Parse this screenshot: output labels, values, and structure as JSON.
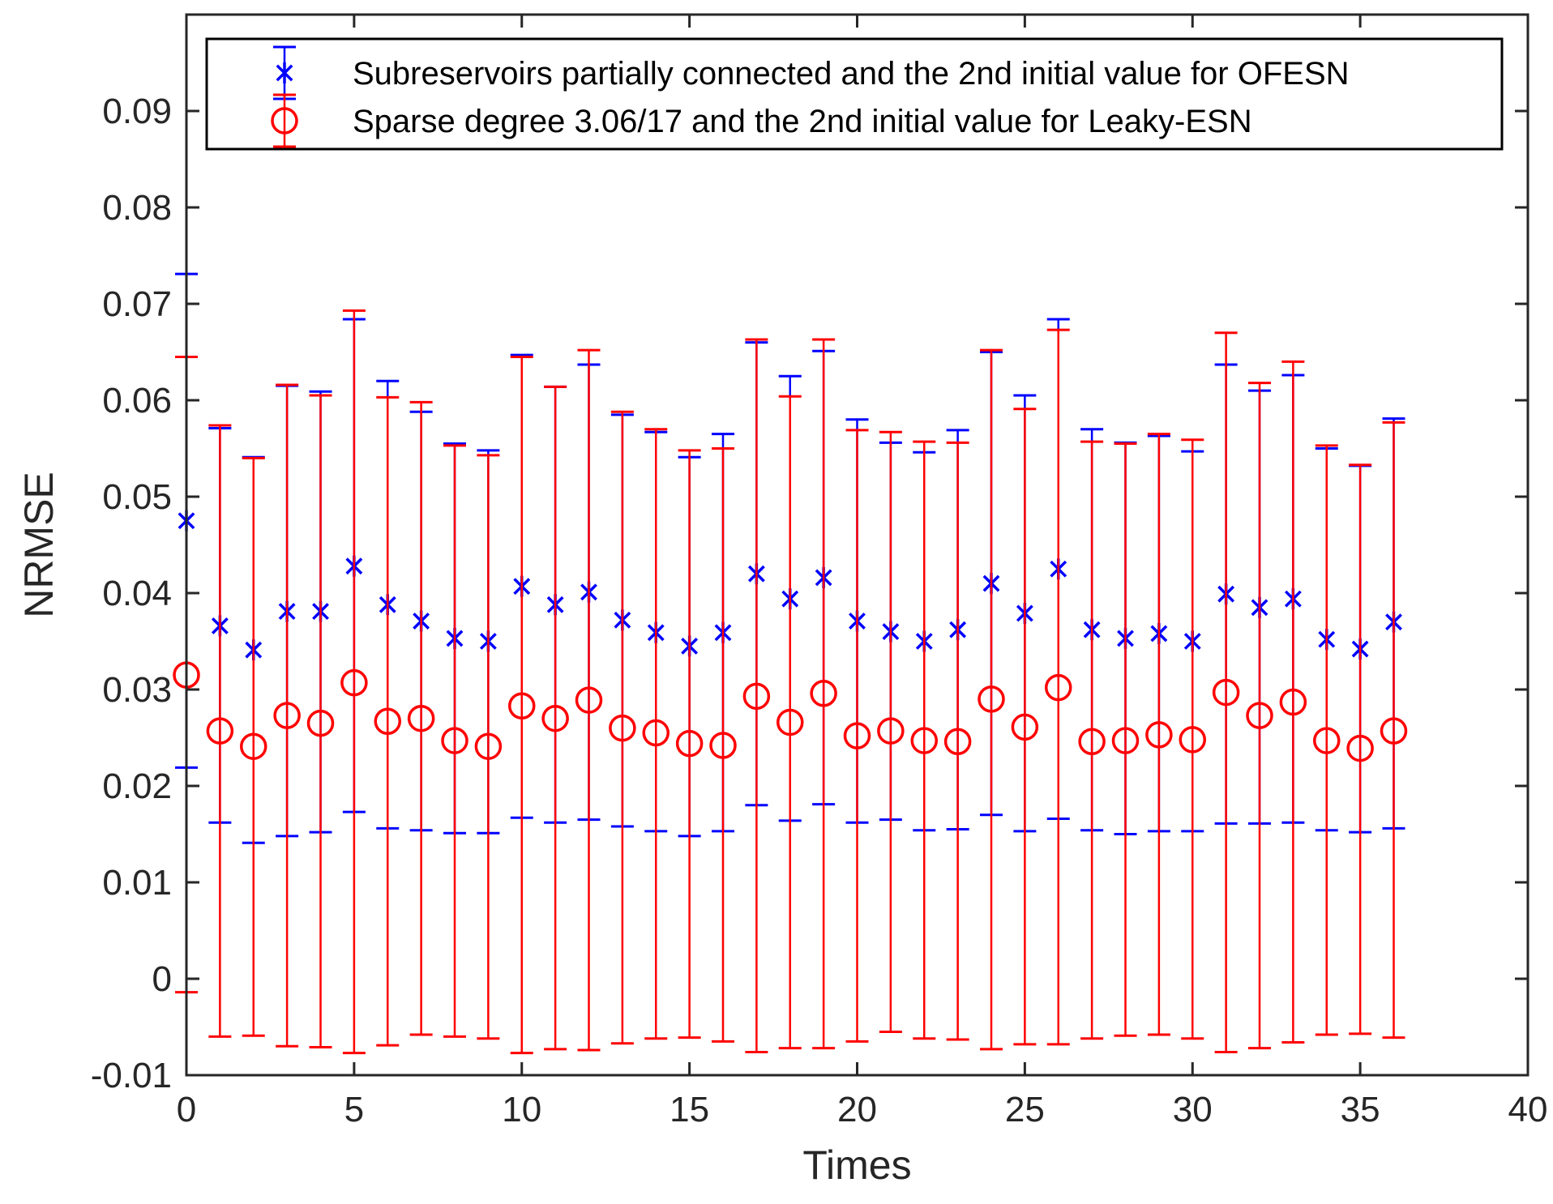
{
  "chart_data": {
    "type": "errorbar",
    "title": "",
    "xlabel": "Times",
    "ylabel": "NRMSE",
    "xlim": [
      0,
      40
    ],
    "ylim": [
      -0.01,
      0.1
    ],
    "xticks": [
      0,
      5,
      10,
      15,
      20,
      25,
      30,
      35,
      40
    ],
    "xtick_labels": [
      "0",
      "5",
      "10",
      "15",
      "20",
      "25",
      "30",
      "35",
      "40"
    ],
    "yticks": [
      -0.01,
      0,
      0.01,
      0.02,
      0.03,
      0.04,
      0.05,
      0.06,
      0.07,
      0.08,
      0.09
    ],
    "ytick_labels": [
      "-0.01",
      "0",
      "0.01",
      "0.02",
      "0.03",
      "0.04",
      "0.05",
      "0.06",
      "0.07",
      "0.08",
      "0.09"
    ],
    "grid": false,
    "legend_position": "top",
    "x": [
      0,
      1,
      2,
      3,
      4,
      5,
      6,
      7,
      8,
      9,
      10,
      11,
      12,
      13,
      14,
      15,
      16,
      17,
      18,
      19,
      20,
      21,
      22,
      23,
      24,
      25,
      26,
      27,
      28,
      29,
      30,
      31,
      32,
      33,
      34,
      35,
      36
    ],
    "series": [
      {
        "name": "Subreservoirs partially connected and the 2nd initial value for OFESN",
        "color": "#0000ff",
        "marker": "asterisk",
        "values": [
          0.0475,
          0.0366,
          0.0341,
          0.0381,
          0.0381,
          0.0428,
          0.0388,
          0.0371,
          0.0353,
          0.035,
          0.0407,
          0.0388,
          0.0401,
          0.0372,
          0.0359,
          0.0345,
          0.0359,
          0.042,
          0.0394,
          0.0416,
          0.0371,
          0.036,
          0.035,
          0.0362,
          0.041,
          0.0379,
          0.0425,
          0.0362,
          0.0353,
          0.0358,
          0.035,
          0.0399,
          0.0385,
          0.0394,
          0.0352,
          0.0342,
          0.037
        ],
        "upper": [
          0.0731,
          0.0571,
          0.0541,
          0.0615,
          0.0609,
          0.0684,
          0.062,
          0.0588,
          0.0555,
          0.0548,
          0.0647,
          0.0614,
          0.0637,
          0.0585,
          0.0567,
          0.0541,
          0.0565,
          0.066,
          0.0625,
          0.0651,
          0.058,
          0.0556,
          0.0546,
          0.0569,
          0.065,
          0.0605,
          0.0684,
          0.057,
          0.0556,
          0.0563,
          0.0547,
          0.0637,
          0.061,
          0.0626,
          0.055,
          0.0532,
          0.0581
        ],
        "lower": [
          0.0219,
          0.0162,
          0.0141,
          0.0148,
          0.0152,
          0.0173,
          0.0156,
          0.0154,
          0.0151,
          0.0151,
          0.0167,
          0.0162,
          0.0165,
          0.0158,
          0.0153,
          0.0148,
          0.0153,
          0.018,
          0.0164,
          0.0181,
          0.0162,
          0.0165,
          0.0154,
          0.0155,
          0.017,
          0.0153,
          0.0166,
          0.0154,
          0.015,
          0.0153,
          0.0153,
          0.0161,
          0.0161,
          0.0162,
          0.0154,
          0.0152,
          0.0156
        ]
      },
      {
        "name": "Sparse degree 3.06/17  and the 2nd initial value for Leaky-ESN",
        "color": "#ff0000",
        "marker": "circle",
        "values": [
          0.0315,
          0.0257,
          0.0241,
          0.0273,
          0.0265,
          0.0307,
          0.0267,
          0.027,
          0.0247,
          0.0241,
          0.0283,
          0.027,
          0.0289,
          0.026,
          0.0255,
          0.0244,
          0.0242,
          0.0293,
          0.0266,
          0.0296,
          0.0252,
          0.0257,
          0.0247,
          0.0246,
          0.029,
          0.0261,
          0.0302,
          0.0246,
          0.0247,
          0.0253,
          0.0248,
          0.0297,
          0.0273,
          0.0287,
          0.0247,
          0.0239,
          0.0257
        ],
        "upper": [
          0.0645,
          0.0574,
          0.054,
          0.0616,
          0.0605,
          0.0693,
          0.0603,
          0.0598,
          0.0553,
          0.0543,
          0.0645,
          0.0614,
          0.0652,
          0.0588,
          0.057,
          0.0548,
          0.055,
          0.0663,
          0.0604,
          0.0663,
          0.0569,
          0.0567,
          0.0557,
          0.0556,
          0.0652,
          0.0591,
          0.0673,
          0.0557,
          0.0555,
          0.0565,
          0.0559,
          0.067,
          0.0618,
          0.064,
          0.0553,
          0.0533,
          0.0577
        ],
        "lower": [
          -0.0014,
          -0.006,
          -0.0059,
          -0.007,
          -0.0071,
          -0.0077,
          -0.0069,
          -0.0058,
          -0.006,
          -0.0062,
          -0.0077,
          -0.0073,
          -0.0074,
          -0.0067,
          -0.0062,
          -0.0061,
          -0.0065,
          -0.0076,
          -0.0072,
          -0.0072,
          -0.0065,
          -0.0055,
          -0.0062,
          -0.0063,
          -0.0073,
          -0.0068,
          -0.0068,
          -0.0062,
          -0.0059,
          -0.0058,
          -0.0062,
          -0.0076,
          -0.0072,
          -0.0066,
          -0.0058,
          -0.0057,
          -0.0061
        ]
      }
    ]
  }
}
